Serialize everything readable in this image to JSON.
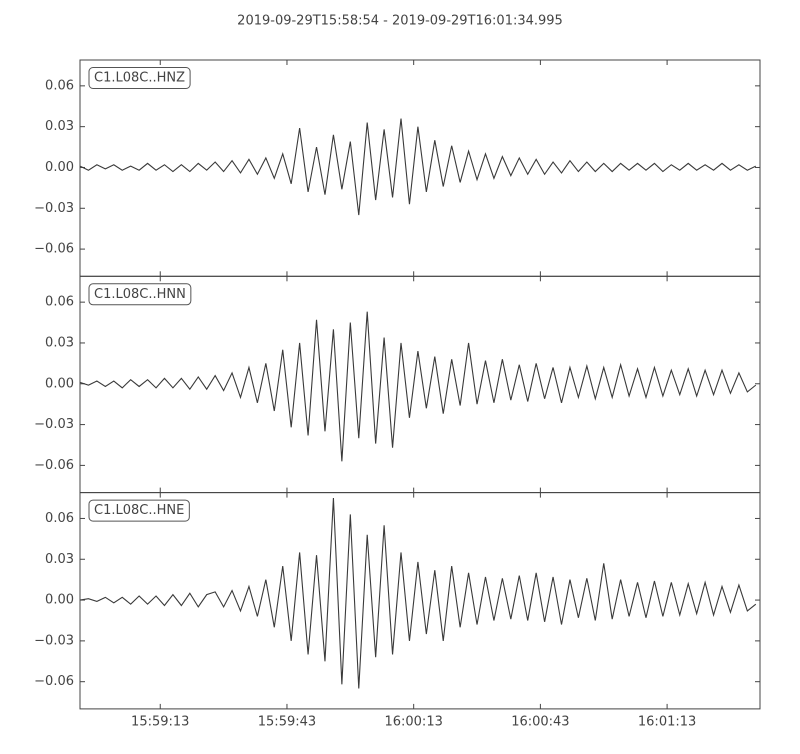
{
  "title": "2019-09-29T15:58:54  -  2019-09-29T16:01:34.995",
  "chart_data": [
    {
      "type": "line",
      "label": "C1.L08C..HNZ",
      "color": "#3a3a3a",
      "xlim": [
        "15:58:54",
        "16:01:34.995"
      ],
      "ylim": [
        -0.08,
        0.079
      ],
      "yticks": [
        0.06,
        0.03,
        {
          "value": 0,
          "label": "0.00"
        },
        {
          "value": -0.03,
          "label": "−0.03"
        },
        {
          "value": -0.06,
          "label": "−0.06"
        }
      ],
      "x": [
        "15:58:54",
        "15:58:56",
        "15:58:58",
        "15:59:00",
        "15:59:02",
        "15:59:04",
        "15:59:06",
        "15:59:08",
        "15:59:10",
        "15:59:12",
        "15:59:14",
        "15:59:16",
        "15:59:18",
        "15:59:20",
        "15:59:22",
        "15:59:24",
        "15:59:26",
        "15:59:28",
        "15:59:30",
        "15:59:32",
        "15:59:34",
        "15:59:36",
        "15:59:38",
        "15:59:40",
        "15:59:42",
        "15:59:44",
        "15:59:46",
        "15:59:48",
        "15:59:50",
        "15:59:52",
        "15:59:54",
        "15:59:56",
        "15:59:58",
        "16:00:00",
        "16:00:02",
        "16:00:04",
        "16:00:06",
        "16:00:08",
        "16:00:10",
        "16:00:12",
        "16:00:14",
        "16:00:16",
        "16:00:18",
        "16:00:20",
        "16:00:22",
        "16:00:24",
        "16:00:26",
        "16:00:28",
        "16:00:30",
        "16:00:32",
        "16:00:34",
        "16:00:36",
        "16:00:38",
        "16:00:40",
        "16:00:42",
        "16:00:44",
        "16:00:46",
        "16:00:48",
        "16:00:50",
        "16:00:52",
        "16:00:54",
        "16:00:56",
        "16:00:58",
        "16:01:00",
        "16:01:02",
        "16:01:04",
        "16:01:06",
        "16:01:08",
        "16:01:10",
        "16:01:12",
        "16:01:14",
        "16:01:16",
        "16:01:18",
        "16:01:20",
        "16:01:22",
        "16:01:24",
        "16:01:26",
        "16:01:28",
        "16:01:30",
        "16:01:32",
        "16:01:34"
      ],
      "values": [
        0.001,
        -0.002,
        0.002,
        -0.001,
        0.002,
        -0.002,
        0.001,
        -0.002,
        0.003,
        -0.002,
        0.002,
        -0.003,
        0.002,
        -0.003,
        0.003,
        -0.002,
        0.004,
        -0.003,
        0.005,
        -0.004,
        0.006,
        -0.005,
        0.007,
        -0.008,
        0.01,
        -0.012,
        0.029,
        -0.018,
        0.015,
        -0.02,
        0.024,
        -0.016,
        0.019,
        -0.035,
        0.033,
        -0.024,
        0.028,
        -0.022,
        0.036,
        -0.027,
        0.03,
        -0.018,
        0.02,
        -0.014,
        0.016,
        -0.011,
        0.012,
        -0.009,
        0.01,
        -0.008,
        0.008,
        -0.006,
        0.007,
        -0.005,
        0.006,
        -0.005,
        0.004,
        -0.004,
        0.005,
        -0.003,
        0.004,
        -0.003,
        0.003,
        -0.003,
        0.003,
        -0.002,
        0.003,
        -0.002,
        0.003,
        -0.003,
        0.002,
        -0.002,
        0.003,
        -0.002,
        0.002,
        -0.002,
        0.003,
        -0.002,
        0.002,
        -0.002,
        0.001
      ]
    },
    {
      "type": "line",
      "label": "C1.L08C..HNN",
      "color": "#3a3a3a",
      "xlim": [
        "15:58:54",
        "16:01:34.995"
      ],
      "ylim": [
        -0.08,
        0.079
      ],
      "yticks": [
        0.06,
        0.03,
        {
          "value": 0,
          "label": "0.00"
        },
        {
          "value": -0.03,
          "label": "−0.03"
        },
        {
          "value": -0.06,
          "label": "−0.06"
        }
      ],
      "x": [
        "15:58:54",
        "15:58:56",
        "15:58:58",
        "15:59:00",
        "15:59:02",
        "15:59:04",
        "15:59:06",
        "15:59:08",
        "15:59:10",
        "15:59:12",
        "15:59:14",
        "15:59:16",
        "15:59:18",
        "15:59:20",
        "15:59:22",
        "15:59:24",
        "15:59:26",
        "15:59:28",
        "15:59:30",
        "15:59:32",
        "15:59:34",
        "15:59:36",
        "15:59:38",
        "15:59:40",
        "15:59:42",
        "15:59:44",
        "15:59:46",
        "15:59:48",
        "15:59:50",
        "15:59:52",
        "15:59:54",
        "15:59:56",
        "15:59:58",
        "16:00:00",
        "16:00:02",
        "16:00:04",
        "16:00:06",
        "16:00:08",
        "16:00:10",
        "16:00:12",
        "16:00:14",
        "16:00:16",
        "16:00:18",
        "16:00:20",
        "16:00:22",
        "16:00:24",
        "16:00:26",
        "16:00:28",
        "16:00:30",
        "16:00:32",
        "16:00:34",
        "16:00:36",
        "16:00:38",
        "16:00:40",
        "16:00:42",
        "16:00:44",
        "16:00:46",
        "16:00:48",
        "16:00:50",
        "16:00:52",
        "16:00:54",
        "16:00:56",
        "16:00:58",
        "16:01:00",
        "16:01:02",
        "16:01:04",
        "16:01:06",
        "16:01:08",
        "16:01:10",
        "16:01:12",
        "16:01:14",
        "16:01:16",
        "16:01:18",
        "16:01:20",
        "16:01:22",
        "16:01:24",
        "16:01:26",
        "16:01:28",
        "16:01:30",
        "16:01:32",
        "16:01:34"
      ],
      "values": [
        0.001,
        -0.001,
        0.002,
        -0.002,
        0.002,
        -0.003,
        0.003,
        -0.002,
        0.003,
        -0.003,
        0.004,
        -0.003,
        0.004,
        -0.004,
        0.005,
        -0.004,
        0.006,
        -0.005,
        0.008,
        -0.01,
        0.012,
        -0.014,
        0.015,
        -0.02,
        0.025,
        -0.032,
        0.03,
        -0.038,
        0.047,
        -0.035,
        0.04,
        -0.057,
        0.045,
        -0.04,
        0.053,
        -0.044,
        0.034,
        -0.047,
        0.03,
        -0.025,
        0.024,
        -0.018,
        0.02,
        -0.022,
        0.018,
        -0.016,
        0.03,
        -0.015,
        0.017,
        -0.014,
        0.018,
        -0.012,
        0.014,
        -0.013,
        0.015,
        -0.011,
        0.012,
        -0.014,
        0.012,
        -0.01,
        0.013,
        -0.011,
        0.012,
        -0.01,
        0.014,
        -0.009,
        0.011,
        -0.01,
        0.012,
        -0.009,
        0.01,
        -0.008,
        0.011,
        -0.009,
        0.01,
        -0.008,
        0.01,
        -0.007,
        0.008,
        -0.006,
        -0.001
      ]
    },
    {
      "type": "line",
      "label": "C1.L08C..HNE",
      "color": "#3a3a3a",
      "xlim": [
        "15:58:54",
        "16:01:34.995"
      ],
      "ylim": [
        -0.08,
        0.079
      ],
      "yticks": [
        0.06,
        0.03,
        {
          "value": 0,
          "label": "0.00"
        },
        {
          "value": -0.03,
          "label": "−0.03"
        },
        {
          "value": -0.06,
          "label": "−0.06"
        }
      ],
      "xticks": [
        "15:59:13",
        "15:59:43",
        "16:00:13",
        "16:00:43",
        "16:01:13"
      ],
      "x": [
        "15:58:54",
        "15:58:56",
        "15:58:58",
        "15:59:00",
        "15:59:02",
        "15:59:04",
        "15:59:06",
        "15:59:08",
        "15:59:10",
        "15:59:12",
        "15:59:14",
        "15:59:16",
        "15:59:18",
        "15:59:20",
        "15:59:22",
        "15:59:24",
        "15:59:26",
        "15:59:28",
        "15:59:30",
        "15:59:32",
        "15:59:34",
        "15:59:36",
        "15:59:38",
        "15:59:40",
        "15:59:42",
        "15:59:44",
        "15:59:46",
        "15:59:48",
        "15:59:50",
        "15:59:52",
        "15:59:54",
        "15:59:56",
        "15:59:58",
        "16:00:00",
        "16:00:02",
        "16:00:04",
        "16:00:06",
        "16:00:08",
        "16:00:10",
        "16:00:12",
        "16:00:14",
        "16:00:16",
        "16:00:18",
        "16:00:20",
        "16:00:22",
        "16:00:24",
        "16:00:26",
        "16:00:28",
        "16:00:30",
        "16:00:32",
        "16:00:34",
        "16:00:36",
        "16:00:38",
        "16:00:40",
        "16:00:42",
        "16:00:44",
        "16:00:46",
        "16:00:48",
        "16:00:50",
        "16:00:52",
        "16:00:54",
        "16:00:56",
        "16:00:58",
        "16:01:00",
        "16:01:02",
        "16:01:04",
        "16:01:06",
        "16:01:08",
        "16:01:10",
        "16:01:12",
        "16:01:14",
        "16:01:16",
        "16:01:18",
        "16:01:20",
        "16:01:22",
        "16:01:24",
        "16:01:26",
        "16:01:28",
        "16:01:30",
        "16:01:32",
        "16:01:34"
      ],
      "values": [
        0.0,
        0.001,
        -0.001,
        0.002,
        -0.002,
        0.002,
        -0.003,
        0.003,
        -0.003,
        0.003,
        -0.004,
        0.004,
        -0.004,
        0.005,
        -0.005,
        0.004,
        0.006,
        -0.005,
        0.007,
        -0.008,
        0.01,
        -0.012,
        0.015,
        -0.02,
        0.025,
        -0.03,
        0.035,
        -0.04,
        0.033,
        -0.045,
        0.075,
        -0.062,
        0.063,
        -0.065,
        0.048,
        -0.042,
        0.055,
        -0.04,
        0.035,
        -0.03,
        0.028,
        -0.025,
        0.022,
        -0.03,
        0.025,
        -0.02,
        0.02,
        -0.018,
        0.017,
        -0.015,
        0.016,
        -0.014,
        0.018,
        -0.015,
        0.02,
        -0.016,
        0.017,
        -0.018,
        0.015,
        -0.013,
        0.016,
        -0.015,
        0.027,
        -0.014,
        0.015,
        -0.012,
        0.013,
        -0.013,
        0.014,
        -0.012,
        0.013,
        -0.011,
        0.012,
        -0.01,
        0.013,
        -0.011,
        0.01,
        -0.009,
        0.011,
        -0.008,
        -0.003
      ]
    }
  ]
}
